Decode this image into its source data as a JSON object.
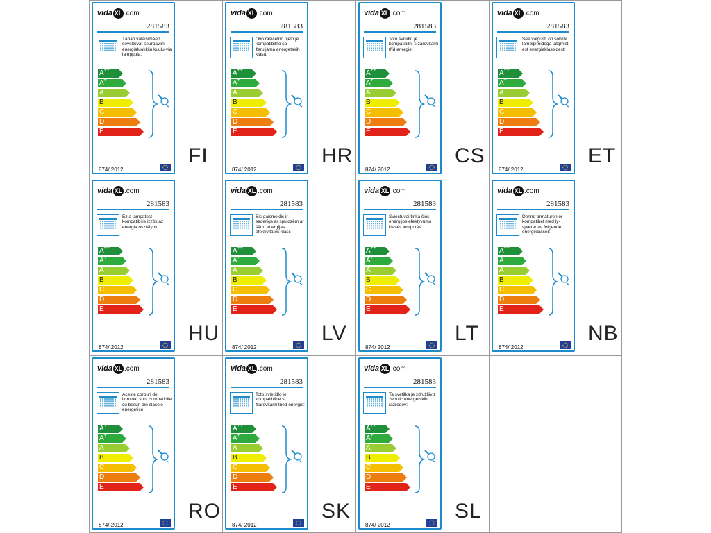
{
  "panels": [
    {
      "lang": "FI",
      "code": "281583",
      "description": "Tähän valaisimeen soveltuvat seuraaviin energialuokkiin kuulu-via lamppuja:",
      "regulation": "874/ 2012"
    },
    {
      "lang": "HR",
      "code": "281583",
      "description": "Ovo rasvjetno tijelo je kompatibilno sa žaruljama energetskih klasa:",
      "regulation": "874/ 2012"
    },
    {
      "lang": "CS",
      "code": "281583",
      "description": "Toto svítidlo je kompatibilní s žárovkami tříd energie:",
      "regulation": "874/ 2012"
    },
    {
      "lang": "ET",
      "code": "281583",
      "description": "See valgusti on sobilik lambipirnidega jätgmist-est energiaklassidest:",
      "regulation": "874/ 2012"
    },
    {
      "lang": "HU",
      "code": "281583",
      "description": "Ez a lámpatest kompatibilis izzók az energia osztályok:",
      "regulation": "874/ 2012"
    },
    {
      "lang": "LV",
      "code": "281583",
      "description": "Šis gaismeklis ir saderīgs ar spuldzēm ar šādu energijas efektivitātes klasi:",
      "regulation": "874/ 2012"
    },
    {
      "lang": "LT",
      "code": "281583",
      "description": "Šviestuvai tinka šios energijos efektyvumo klasės lemputės:",
      "regulation": "874/ 2012"
    },
    {
      "lang": "NB",
      "code": "281583",
      "description": "Denne armaturen er kompatibel med ly-spærer av følgende energiklasser:",
      "regulation": "874/ 2012"
    },
    {
      "lang": "RO",
      "code": "281583",
      "description": "Aceste corpuri de iluminat sunt compatibile cu becuri din clasele energetice:",
      "regulation": "874/ 2012"
    },
    {
      "lang": "SK",
      "code": "281583",
      "description": "Toto svietidlo je kompatibilné s žiarovkami tried energie:",
      "regulation": "874/ 2012"
    },
    {
      "lang": "SL",
      "code": "281583",
      "description": "Ta svetilka je združljiv z žebulic energetskih razredov:",
      "regulation": "874/ 2012"
    }
  ],
  "brand": {
    "prefix": "vida",
    "mark": "XL",
    "suffix": ".com"
  },
  "energy_classes": [
    {
      "base": "A",
      "sup": "++",
      "color": "#1f8f3a"
    },
    {
      "base": "A",
      "sup": "+",
      "color": "#2faa3c"
    },
    {
      "base": "A",
      "sup": "",
      "color": "#9acd32"
    },
    {
      "base": "B",
      "sup": "",
      "color": "#f0ee00"
    },
    {
      "base": "C",
      "sup": "",
      "color": "#f6be00"
    },
    {
      "base": "D",
      "sup": "",
      "color": "#ee7d10"
    },
    {
      "base": "E",
      "sup": "",
      "color": "#e2231a"
    }
  ],
  "colors": {
    "frame": "#1c8ccd",
    "grid": "#9a9a9a",
    "eu_flag": "#1f3f9a",
    "eu_stars": "#ffd200"
  }
}
